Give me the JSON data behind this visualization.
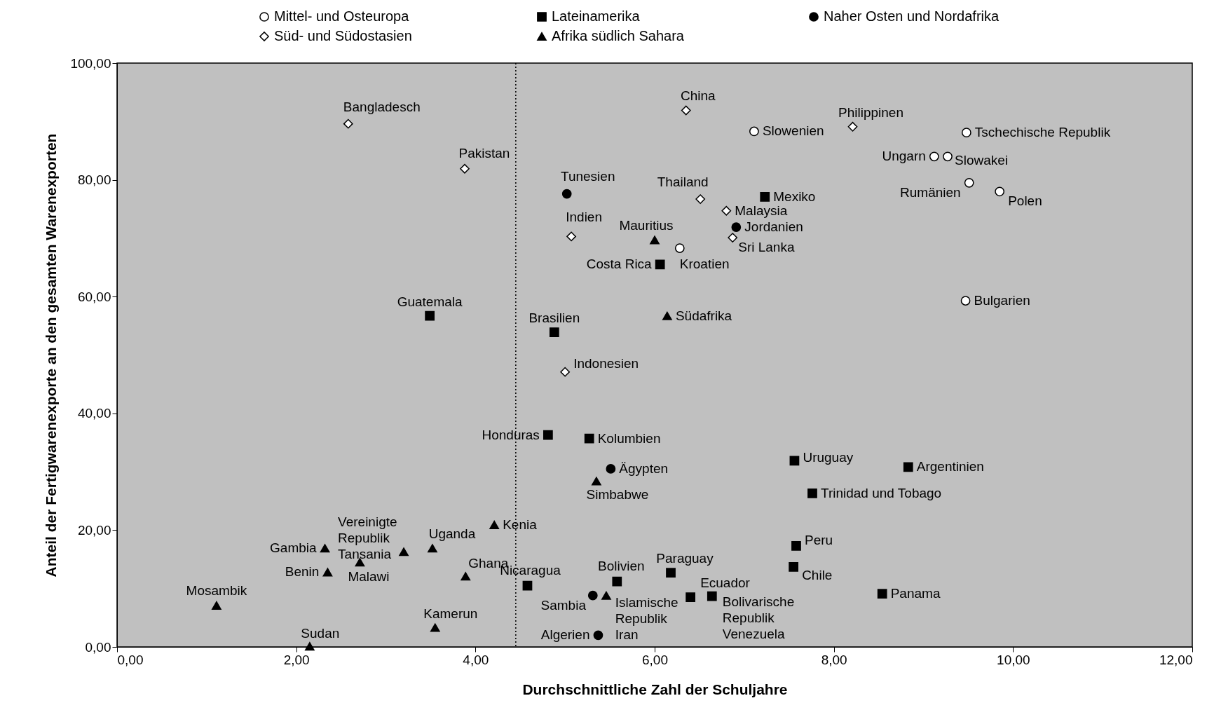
{
  "chart_data": {
    "type": "scatter",
    "xlabel": "Durchschnittliche Zahl der Schuljahre",
    "ylabel": "Anteil der Fertigwarenexporte an den gesamten Warenexporten",
    "xlim": [
      0,
      12
    ],
    "ylim": [
      0,
      100
    ],
    "xticks": [
      {
        "value": 0,
        "label": "0,00"
      },
      {
        "value": 2,
        "label": "2,00"
      },
      {
        "value": 4,
        "label": "4,00"
      },
      {
        "value": 6,
        "label": "6,00"
      },
      {
        "value": 8,
        "label": "8,00"
      },
      {
        "value": 10,
        "label": "10,00"
      },
      {
        "value": 12,
        "label": "12,00"
      }
    ],
    "yticks": [
      {
        "value": 0,
        "label": "0,00"
      },
      {
        "value": 20,
        "label": "20,00"
      },
      {
        "value": 40,
        "label": "40,00"
      },
      {
        "value": 60,
        "label": "60,00"
      },
      {
        "value": 80,
        "label": "80,00"
      },
      {
        "value": 100,
        "label": "100,00"
      }
    ],
    "grid": false,
    "legend": "top",
    "ref_lines": [
      {
        "axis": "x",
        "value": 4.45,
        "line_style": "dotted"
      }
    ],
    "series": [
      {
        "name": "Mittel- und Osteuropa",
        "color": "#ffffff",
        "marker": "circle",
        "x": [
          7.11,
          9.48,
          9.12,
          9.27,
          9.51,
          9.85,
          6.28,
          9.47
        ],
        "values": [
          88.3,
          88.1,
          84.0,
          84.0,
          79.5,
          78.0,
          68.3,
          59.3
        ]
      },
      {
        "name": "Lateinamerika",
        "color": "#000000",
        "marker": "square",
        "x": [
          7.23,
          6.06,
          3.49,
          4.88,
          4.81,
          5.27,
          7.56,
          8.83,
          7.76,
          7.58,
          7.55,
          8.54,
          4.58,
          5.58,
          6.18,
          6.4,
          6.64
        ],
        "values": [
          77.1,
          65.5,
          56.7,
          53.9,
          36.3,
          35.7,
          31.9,
          30.8,
          26.3,
          17.3,
          13.7,
          9.1,
          10.5,
          11.2,
          12.7,
          8.5,
          8.7
        ]
      },
      {
        "name": "Naher Osten und Nordafrika",
        "color": "#000000",
        "marker": "circle",
        "x": [
          5.02,
          6.91,
          5.51,
          5.31,
          5.37
        ],
        "values": [
          77.6,
          71.9,
          30.5,
          8.8,
          2.0
        ]
      },
      {
        "name": "Süd- und Südostasien",
        "color": "#ffffff",
        "marker": "diamond",
        "x": [
          2.58,
          3.88,
          6.35,
          8.21,
          6.51,
          6.8,
          5.07,
          6.87,
          5.0
        ],
        "values": [
          89.6,
          81.9,
          91.9,
          89.1,
          76.7,
          74.7,
          70.3,
          70.1,
          47.1
        ]
      },
      {
        "name": "Afrika südlich Sahara",
        "color": "#000000",
        "marker": "triangle",
        "x": [
          6.0,
          6.14,
          5.35,
          4.21,
          2.32,
          3.2,
          3.52,
          2.71,
          2.35,
          3.89,
          5.46,
          1.11,
          3.55,
          2.15
        ],
        "values": [
          69.7,
          56.7,
          28.4,
          20.9,
          16.9,
          16.3,
          16.9,
          14.5,
          12.8,
          12.1,
          8.8,
          7.1,
          3.3,
          0.1
        ]
      }
    ],
    "annotations": [
      {
        "text": "Slowenien",
        "x": 7.11,
        "y": 88.3
      },
      {
        "text": "Tschechische Republik",
        "x": 9.48,
        "y": 88.1
      },
      {
        "text": "Ungarn",
        "x": 9.12,
        "y": 84.0
      },
      {
        "text": "Slowakei",
        "x": 9.27,
        "y": 84.0
      },
      {
        "text": "Rumänien",
        "x": 9.51,
        "y": 79.5
      },
      {
        "text": "Polen",
        "x": 9.85,
        "y": 78.0
      },
      {
        "text": "Kroatien",
        "x": 6.28,
        "y": 68.3
      },
      {
        "text": "Bulgarien",
        "x": 9.47,
        "y": 59.3
      },
      {
        "text": "Mexiko",
        "x": 7.23,
        "y": 77.1
      },
      {
        "text": "Costa Rica",
        "x": 6.06,
        "y": 65.5
      },
      {
        "text": "Guatemala",
        "x": 3.49,
        "y": 56.7
      },
      {
        "text": "Brasilien",
        "x": 4.88,
        "y": 53.9
      },
      {
        "text": "Honduras",
        "x": 4.81,
        "y": 36.3
      },
      {
        "text": "Kolumbien",
        "x": 5.27,
        "y": 35.7
      },
      {
        "text": "Uruguay",
        "x": 7.56,
        "y": 31.9
      },
      {
        "text": "Argentinien",
        "x": 8.83,
        "y": 30.8
      },
      {
        "text": "Trinidad und Tobago",
        "x": 7.76,
        "y": 26.3
      },
      {
        "text": "Peru",
        "x": 7.58,
        "y": 17.3
      },
      {
        "text": "Chile",
        "x": 7.55,
        "y": 13.7
      },
      {
        "text": "Panama",
        "x": 8.54,
        "y": 9.1
      },
      {
        "text": "Nicaragua",
        "x": 4.58,
        "y": 10.5
      },
      {
        "text": "Bolivien",
        "x": 5.58,
        "y": 11.2
      },
      {
        "text": "Paraguay",
        "x": 6.18,
        "y": 12.7
      },
      {
        "text": "Ecuador",
        "x": 6.4,
        "y": 8.5
      },
      {
        "text": "Bolivarische\nRepublik\nVenezuela",
        "x": 6.64,
        "y": 8.7
      },
      {
        "text": "Tunesien",
        "x": 5.02,
        "y": 77.6
      },
      {
        "text": "Jordanien",
        "x": 6.91,
        "y": 71.9
      },
      {
        "text": "Ägypten",
        "x": 5.51,
        "y": 30.5
      },
      {
        "text": "Islamische\nRepublik\nIran",
        "x": 5.31,
        "y": 8.8
      },
      {
        "text": "Algerien",
        "x": 5.37,
        "y": 2.0
      },
      {
        "text": "Bangladesch",
        "x": 2.58,
        "y": 89.6
      },
      {
        "text": "Pakistan",
        "x": 3.88,
        "y": 81.9
      },
      {
        "text": "China",
        "x": 6.35,
        "y": 91.9
      },
      {
        "text": "Philippinen",
        "x": 8.21,
        "y": 89.1
      },
      {
        "text": "Thailand",
        "x": 6.51,
        "y": 76.7
      },
      {
        "text": "Malaysia",
        "x": 6.8,
        "y": 74.7
      },
      {
        "text": "Indien",
        "x": 5.07,
        "y": 70.3
      },
      {
        "text": "Sri Lanka",
        "x": 6.87,
        "y": 70.1
      },
      {
        "text": "Indonesien",
        "x": 5.0,
        "y": 47.1
      },
      {
        "text": "Mauritius",
        "x": 6.0,
        "y": 69.7
      },
      {
        "text": "Südafrika",
        "x": 6.14,
        "y": 56.7
      },
      {
        "text": "Simbabwe",
        "x": 5.35,
        "y": 28.4
      },
      {
        "text": "Kenia",
        "x": 4.21,
        "y": 20.9
      },
      {
        "text": "Gambia",
        "x": 2.32,
        "y": 16.9
      },
      {
        "text": "Vereinigte\nRepublik\nTansania",
        "x": 3.2,
        "y": 16.3
      },
      {
        "text": "Uganda",
        "x": 3.52,
        "y": 16.9
      },
      {
        "text": "Malawi",
        "x": 2.71,
        "y": 14.5
      },
      {
        "text": "Benin",
        "x": 2.35,
        "y": 12.8
      },
      {
        "text": "Ghana",
        "x": 3.89,
        "y": 12.1
      },
      {
        "text": "Sambia",
        "x": 5.46,
        "y": 8.8
      },
      {
        "text": "Mosambik",
        "x": 1.11,
        "y": 7.1
      },
      {
        "text": "Kamerun",
        "x": 3.55,
        "y": 3.3
      },
      {
        "text": "Sudan",
        "x": 2.15,
        "y": 0.1
      }
    ]
  }
}
